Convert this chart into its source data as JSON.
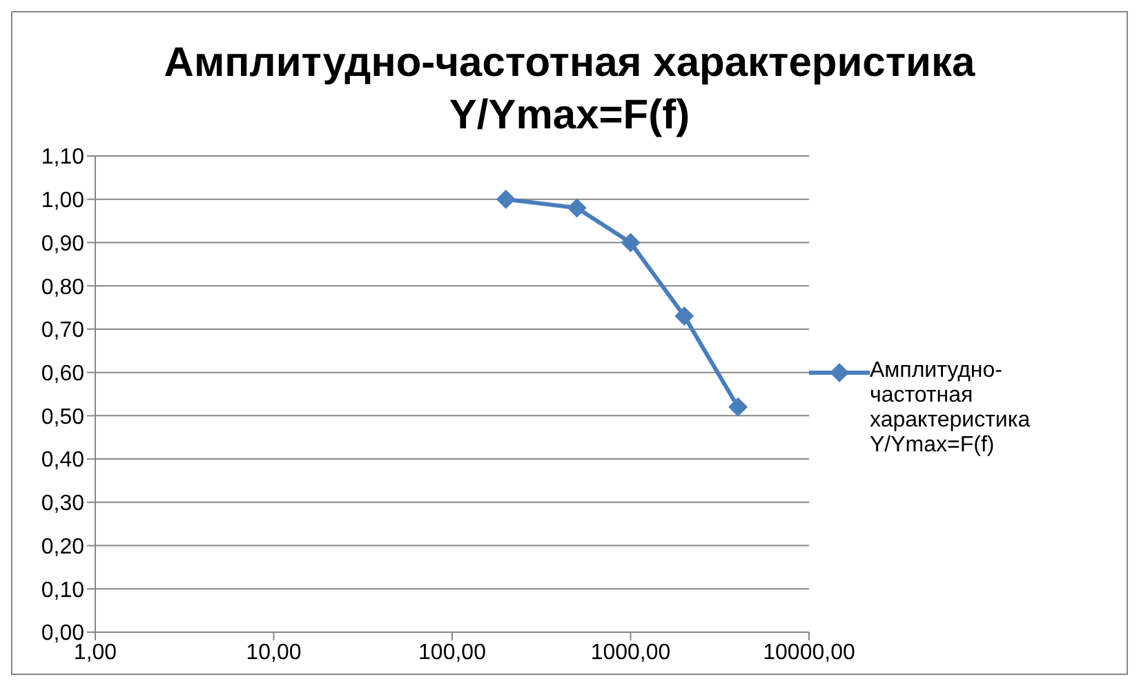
{
  "chart_data": {
    "type": "line",
    "title": "Амплитудно-частотная характеристика Y/Ymax=F(f)",
    "x": [
      200,
      500,
      1000,
      2000,
      4000
    ],
    "series": [
      {
        "name": "Амплитудно-частотная характеристика Y/Ymax=F(f)",
        "color": "#4a7ebb",
        "values": [
          1.0,
          0.98,
          0.9,
          0.73,
          0.52
        ]
      }
    ],
    "log": "x",
    "xlim": [
      1,
      10000
    ],
    "xticks": [
      {
        "value": 1,
        "label": "1,00"
      },
      {
        "value": 10,
        "label": "10,00"
      },
      {
        "value": 100,
        "label": "100,00"
      },
      {
        "value": 1000,
        "label": "1000,00"
      },
      {
        "value": 10000,
        "label": "10000,00"
      }
    ],
    "ylim": [
      0,
      1.1
    ],
    "yticks": [
      {
        "value": 0,
        "label": "0,00"
      },
      {
        "value": 0.1,
        "label": "0,10"
      },
      {
        "value": 0.2,
        "label": "0,20"
      },
      {
        "value": 0.3,
        "label": "0,30"
      },
      {
        "value": 0.4,
        "label": "0,40"
      },
      {
        "value": 0.5,
        "label": "0,50"
      },
      {
        "value": 0.6,
        "label": "0,60"
      },
      {
        "value": 0.7,
        "label": "0,70"
      },
      {
        "value": 0.8,
        "label": "0,80"
      },
      {
        "value": 0.9,
        "label": "0,90"
      },
      {
        "value": 1.0,
        "label": "1,00"
      },
      {
        "value": 1.1,
        "label": "1,10"
      }
    ],
    "grid": "y",
    "legend": "right",
    "marker": "diamond",
    "line_style": "solid"
  }
}
